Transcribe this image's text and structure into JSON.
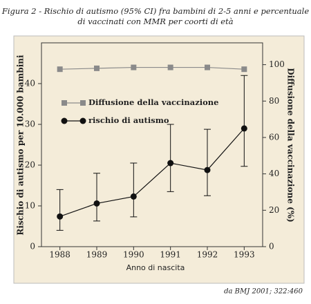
{
  "chart_data": {
    "type": "line",
    "title": "Figura 2 - Rischio di autismo (95% CI) fra bambini di 2-5 anni e percentuale",
    "subtitle": "di vaccinati con MMR per coorti di età",
    "x_label": "Anno di nascita",
    "y_label": "Rischio di autismo per 10.000 bambini",
    "y2_label": "Diffusione della vaccinazione (%)",
    "source": "da BMJ 2001; 322:460",
    "categories": [
      "1988",
      "1989",
      "1990",
      "1991",
      "1992",
      "1993"
    ],
    "ylim": [
      0,
      50
    ],
    "yticks": [
      0,
      10,
      20,
      30,
      40
    ],
    "y2lim": [
      0,
      112
    ],
    "y2ticks": [
      0,
      20,
      40,
      60,
      80,
      100
    ],
    "series": [
      {
        "name": "Diffusione della vaccinazione",
        "color": "#8a8a8a",
        "marker": "square",
        "axis": "y2",
        "values": [
          97.5,
          98,
          98.5,
          98.5,
          98.5,
          97.5
        ]
      },
      {
        "name": "rischio di autismo",
        "color": "#111111",
        "marker": "circle",
        "values": [
          7.4,
          10.6,
          12.3,
          20.5,
          18.8,
          29.0
        ],
        "ci_low": [
          4.0,
          6.3,
          7.3,
          13.5,
          12.5,
          19.7
        ],
        "ci_high": [
          14.0,
          18.0,
          20.5,
          30.0,
          28.8,
          42.0
        ]
      }
    ]
  }
}
